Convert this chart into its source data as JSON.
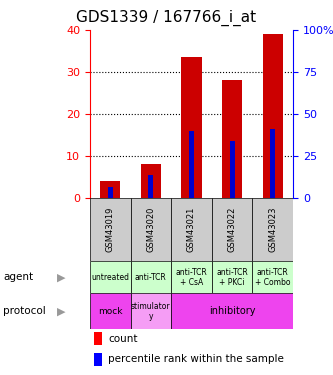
{
  "title": "GDS1339 / 167766_i_at",
  "samples": [
    "GSM43019",
    "GSM43020",
    "GSM43021",
    "GSM43022",
    "GSM43023"
  ],
  "count_values": [
    4.0,
    8.0,
    33.5,
    28.0,
    39.0
  ],
  "percentile_values": [
    2.5,
    5.5,
    16.0,
    13.5,
    16.5
  ],
  "left_ylim": [
    0,
    40
  ],
  "right_ylim": [
    0,
    100
  ],
  "left_yticks": [
    0,
    10,
    20,
    30,
    40
  ],
  "right_yticks": [
    0,
    25,
    50,
    75,
    100
  ],
  "right_yticklabels": [
    "0",
    "25",
    "50",
    "75",
    "100%"
  ],
  "bar_color": "#cc0000",
  "percentile_color": "#0000cc",
  "agent_labels": [
    "untreated",
    "anti-TCR",
    "anti-TCR\n+ CsA",
    "anti-TCR\n+ PKCi",
    "anti-TCR\n+ Combo"
  ],
  "sample_label_bg": "#cccccc",
  "agent_row_bg": "#ccffcc",
  "protocol_row_bg": "#ee44ee",
  "title_fontsize": 11,
  "tick_fontsize": 8,
  "legend_fontsize": 7.5
}
